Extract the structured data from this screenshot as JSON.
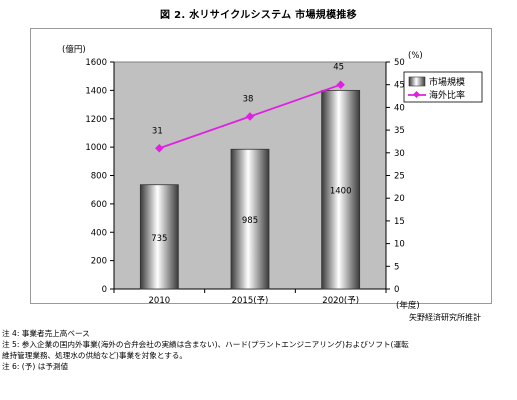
{
  "page": {
    "title": "図 2. 水リサイクルシステム 市場規模推移",
    "source": "矢野経済研究所推計",
    "notes": [
      "注 4: 事業者売上高ベース",
      "注 5: 参入企業の国内外事業(海外の合弁会社の実績は含まない)、ハード(プラントエンジニアリング)およびソフト(運転",
      "維持管理業務、処理水の供給など)事業を対象とする。",
      "注 6: (予) は予測値"
    ]
  },
  "chart_data": {
    "type": "bar",
    "title": "図 2. 水リサイクルシステム 市場規模推移",
    "categories": [
      "2010",
      "2015(予)",
      "2020(予)"
    ],
    "xlabel": "(年度)",
    "ylabel_left": "(億円)",
    "ylabel_right": "(%)",
    "ylim_left": [
      0,
      1600
    ],
    "yticks_left": [
      "0",
      "200",
      "400",
      "600",
      "800",
      "1000",
      "1200",
      "1400",
      "1600"
    ],
    "ylim_right": [
      0,
      50
    ],
    "yticks_right": [
      "0",
      "5",
      "10",
      "15",
      "20",
      "25",
      "30",
      "35",
      "40",
      "45",
      "50"
    ],
    "grid": false,
    "legend_position": "top-right",
    "series": [
      {
        "name": "市場規模",
        "kind": "bar",
        "axis": "left",
        "values": [
          735,
          985,
          1400
        ],
        "labels": [
          "735",
          "985",
          "1400"
        ]
      },
      {
        "name": "海外比率",
        "kind": "line",
        "axis": "right",
        "color": "#e020e0",
        "values": [
          31,
          38,
          45
        ],
        "labels": [
          "31",
          "38",
          "45"
        ]
      }
    ],
    "colors": {
      "plot_bg": "#c0c0c0",
      "line": "#e020e0",
      "bar_dark": "#3a3a3a",
      "bar_light": "#ffffff"
    }
  }
}
